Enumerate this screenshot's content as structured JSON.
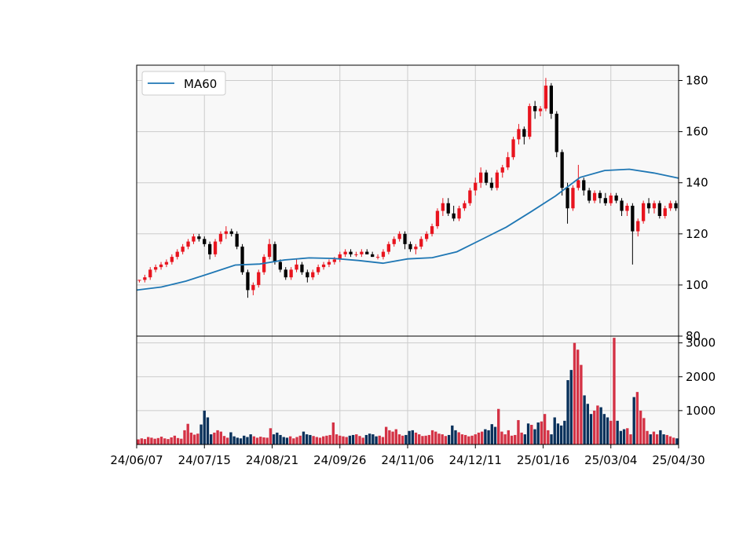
{
  "chart_data": [
    {
      "type": "candlestick",
      "title": "",
      "xlabel": "",
      "ylabel": "",
      "ylim": [
        80,
        186
      ],
      "yticks": [
        80,
        100,
        120,
        140,
        160,
        180
      ],
      "xtick_labels": [
        "24/06/07",
        "24/07/15",
        "24/08/21",
        "24/09/26",
        "24/11/06",
        "24/12/11",
        "25/01/16",
        "25/03/04",
        "25/04/30"
      ],
      "grid": true,
      "legend": {
        "position": "top-left",
        "entries": [
          "MA60"
        ]
      },
      "colors": {
        "up": "#e8141e",
        "down": "#000000",
        "ma": "#1f77b4",
        "panel_bg": "#f8f8f8",
        "grid": "#cccccc"
      },
      "series": [
        {
          "name": "MA60",
          "type": "line",
          "values": [
            98.0,
            99.2,
            101.5,
            104.6,
            107.8,
            108.2,
            109.8,
            110.6,
            110.4,
            109.6,
            108.5,
            110.2,
            110.7,
            113.0,
            117.8,
            122.6,
            128.6,
            134.8,
            142.1,
            144.8,
            145.3,
            143.8,
            141.8
          ]
        },
        {
          "name": "price",
          "type": "ohlc",
          "values": [
            [
              102,
              102,
              101,
              102
            ],
            [
              102,
              104,
              101,
              103
            ],
            [
              103,
              107,
              102,
              106
            ],
            [
              106,
              108,
              105,
              107
            ],
            [
              107,
              109,
              106,
              108
            ],
            [
              108,
              110,
              107,
              109
            ],
            [
              109,
              112,
              108,
              111
            ],
            [
              111,
              114,
              110,
              113
            ],
            [
              113,
              116,
              112,
              115
            ],
            [
              115,
              118,
              114,
              117
            ],
            [
              117,
              120,
              116,
              119
            ],
            [
              119,
              120,
              117,
              118
            ],
            [
              118,
              119,
              115,
              116
            ],
            [
              116,
              117,
              110,
              112
            ],
            [
              112,
              118,
              111,
              117
            ],
            [
              117,
              121,
              116,
              120
            ],
            [
              120,
              123,
              118,
              121
            ],
            [
              121,
              122,
              119,
              120
            ],
            [
              120,
              121,
              114,
              115
            ],
            [
              115,
              116,
              104,
              105
            ],
            [
              105,
              106,
              95,
              98
            ],
            [
              98,
              101,
              96,
              100
            ],
            [
              100,
              106,
              99,
              105
            ],
            [
              105,
              112,
              104,
              111
            ],
            [
              111,
              118,
              110,
              116
            ],
            [
              116,
              117,
              108,
              109
            ],
            [
              109,
              110,
              105,
              106
            ],
            [
              106,
              107,
              102,
              103
            ],
            [
              103,
              107,
              102,
              106
            ],
            [
              106,
              110,
              105,
              108
            ],
            [
              108,
              109,
              104,
              105
            ],
            [
              105,
              106,
              101,
              103
            ],
            [
              103,
              106,
              102,
              105
            ],
            [
              105,
              108,
              104,
              107
            ],
            [
              107,
              109,
              106,
              108
            ],
            [
              108,
              110,
              107,
              109
            ],
            [
              109,
              111,
              108,
              110
            ],
            [
              110,
              113,
              109,
              112
            ],
            [
              112,
              114,
              111,
              113
            ],
            [
              113,
              114,
              111,
              112
            ],
            [
              112,
              113,
              111,
              112
            ],
            [
              112,
              114,
              111,
              113
            ],
            [
              113,
              114,
              112,
              112
            ],
            [
              112,
              113,
              111,
              111
            ],
            [
              111,
              112,
              110,
              111
            ],
            [
              111,
              114,
              110,
              113
            ],
            [
              113,
              117,
              112,
              116
            ],
            [
              116,
              119,
              115,
              118
            ],
            [
              118,
              121,
              117,
              120
            ],
            [
              120,
              121,
              114,
              116
            ],
            [
              116,
              117,
              113,
              114
            ],
            [
              114,
              116,
              112,
              115
            ],
            [
              115,
              119,
              114,
              118
            ],
            [
              118,
              121,
              117,
              120
            ],
            [
              120,
              124,
              119,
              123
            ],
            [
              123,
              130,
              122,
              129
            ],
            [
              129,
              134,
              127,
              132
            ],
            [
              132,
              134,
              127,
              128
            ],
            [
              128,
              131,
              125,
              126
            ],
            [
              126,
              131,
              125,
              130
            ],
            [
              130,
              133,
              129,
              132
            ],
            [
              132,
              138,
              131,
              137
            ],
            [
              137,
              142,
              135,
              140
            ],
            [
              140,
              146,
              138,
              144
            ],
            [
              144,
              145,
              139,
              140
            ],
            [
              140,
              142,
              137,
              138
            ],
            [
              138,
              145,
              137,
              144
            ],
            [
              144,
              147,
              142,
              146
            ],
            [
              146,
              152,
              145,
              150
            ],
            [
              150,
              158,
              149,
              157
            ],
            [
              157,
              163,
              155,
              161
            ],
            [
              161,
              162,
              155,
              158
            ],
            [
              158,
              171,
              157,
              170
            ],
            [
              170,
              172,
              165,
              168
            ],
            [
              168,
              170,
              166,
              169
            ],
            [
              169,
              181,
              168,
              178
            ],
            [
              178,
              179,
              165,
              167
            ],
            [
              167,
              168,
              150,
              152
            ],
            [
              152,
              153,
              135,
              138
            ],
            [
              138,
              140,
              124,
              130
            ],
            [
              130,
              139,
              129,
              138
            ],
            [
              138,
              147,
              137,
              141
            ],
            [
              141,
              142,
              135,
              137
            ],
            [
              137,
              138,
              132,
              133
            ],
            [
              133,
              137,
              132,
              136
            ],
            [
              136,
              137,
              132,
              134
            ],
            [
              134,
              136,
              131,
              132
            ],
            [
              132,
              136,
              131,
              135
            ],
            [
              135,
              136,
              132,
              133
            ],
            [
              133,
              134,
              127,
              129
            ],
            [
              129,
              132,
              127,
              131
            ],
            [
              131,
              132,
              108,
              121
            ],
            [
              121,
              126,
              119,
              125
            ],
            [
              125,
              133,
              124,
              132
            ],
            [
              132,
              134,
              128,
              130
            ],
            [
              130,
              133,
              128,
              132
            ],
            [
              132,
              133,
              126,
              127
            ],
            [
              127,
              131,
              126,
              130
            ],
            [
              130,
              133,
              129,
              132
            ],
            [
              132,
              133,
              129,
              130
            ]
          ]
        }
      ]
    },
    {
      "type": "bar",
      "title": "",
      "xlabel": "",
      "ylabel": "",
      "ylim": [
        0,
        3200
      ],
      "yticks": [
        1000,
        2000,
        3000
      ],
      "grid": true,
      "colors": {
        "up": "#d43245",
        "down": "#08305a"
      },
      "values": [
        150,
        180,
        160,
        220,
        200,
        170,
        190,
        230,
        180,
        160,
        210,
        260,
        190,
        170,
        420,
        610,
        350,
        290,
        320,
        590,
        1000,
        800,
        300,
        350,
        420,
        380,
        250,
        200,
        360,
        240,
        200,
        180,
        260,
        220,
        300,
        240,
        200,
        230,
        210,
        200,
        480,
        300,
        350,
        280,
        220,
        200,
        240,
        180,
        220,
        260,
        380,
        300,
        280,
        250,
        220,
        200,
        240,
        260,
        280,
        650,
        300,
        260,
        240,
        220,
        260,
        280,
        300,
        250,
        200,
        280,
        320,
        300,
        240,
        260,
        220,
        520,
        420,
        380,
        450,
        300,
        260,
        280,
        400,
        420,
        350,
        300,
        250,
        260,
        280,
        420,
        380,
        320,
        300,
        250,
        280,
        560,
        420,
        360,
        300,
        280,
        240,
        260,
        300,
        350,
        380,
        450,
        420,
        600,
        520,
        1050,
        380,
        300,
        420,
        260,
        280,
        720,
        350,
        300,
        620,
        580,
        450,
        650,
        680,
        900,
        420,
        300,
        800,
        620,
        560,
        700,
        1900,
        2200,
        3000,
        2800,
        2350,
        1450,
        1200,
        900,
        1000,
        1150,
        1100,
        900,
        800,
        700,
        3150,
        700,
        400,
        450,
        480,
        300,
        1400,
        1550,
        1000,
        780,
        400,
        300,
        380,
        300,
        420,
        300,
        280,
        240,
        200,
        180
      ]
    }
  ]
}
